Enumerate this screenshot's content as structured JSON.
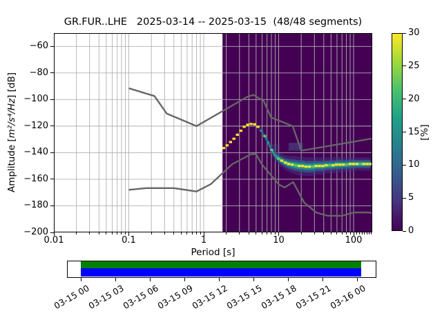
{
  "title": "GR.FUR..LHE   2025-03-14 -- 2025-03-15  (48/48 segments)",
  "axes": {
    "ylabel_prefix": "Amplitude [",
    "ylabel_math": "m²/s⁴/Hz",
    "ylabel_suffix": "] [dB]",
    "xlabel": "Period [s]",
    "x_major_ticks": [
      {
        "v": 0.01,
        "label": "0.01"
      },
      {
        "v": 0.1,
        "label": "0.1"
      },
      {
        "v": 1,
        "label": "1"
      },
      {
        "v": 10,
        "label": "10"
      },
      {
        "v": 100,
        "label": "100"
      }
    ],
    "x_minor_ticks": [
      0.02,
      0.03,
      0.04,
      0.05,
      0.06,
      0.07,
      0.08,
      0.09,
      0.2,
      0.3,
      0.4,
      0.5,
      0.6,
      0.7,
      0.8,
      0.9,
      2,
      3,
      4,
      5,
      6,
      7,
      8,
      9,
      20,
      30,
      40,
      50,
      60,
      70,
      80,
      90,
      110,
      120,
      130,
      140,
      150,
      160,
      170
    ],
    "y_ticks": [
      {
        "v": -60,
        "label": "−60"
      },
      {
        "v": -80,
        "label": "−80"
      },
      {
        "v": -100,
        "label": "−100"
      },
      {
        "v": -120,
        "label": "−120"
      },
      {
        "v": -140,
        "label": "−140"
      },
      {
        "v": -160,
        "label": "−160"
      },
      {
        "v": -180,
        "label": "−180"
      },
      {
        "v": -200,
        "label": "−200"
      }
    ]
  },
  "colorbar": {
    "label": "[%]",
    "min": 0,
    "max": 30,
    "ticks": [
      0,
      5,
      10,
      15,
      20,
      25,
      30
    ],
    "colormap": "viridis",
    "gradient_stops": [
      "#440154",
      "#46327e",
      "#365c8d",
      "#277f8e",
      "#1fa187",
      "#4ac16d",
      "#9fda3a",
      "#fde725"
    ]
  },
  "timeline": {
    "labels": [
      "03-15 00",
      "03-15 03",
      "03-15 06",
      "03-15 09",
      "03-15 12",
      "03-15 15",
      "03-15 18",
      "03-15 21",
      "03-16 00"
    ],
    "data_color": "#008000",
    "used_color": "#0000ff"
  },
  "chart_data": {
    "type": "heatmap",
    "description": "ObsPy PPSD probability density plot for station GR.FUR..LHE; 2D histogram of power spectral density (period vs amplitude dB) in percent, with Peterson NLNM/NHNM noise model curves",
    "x_axis": {
      "label": "Period [s]",
      "scale": "log",
      "range": [
        0.01,
        179
      ]
    },
    "y_axis": {
      "label": "Amplitude [m²/s⁴/Hz] [dB]",
      "scale": "linear",
      "range": [
        -200,
        -50
      ]
    },
    "color_axis": {
      "label": "[%]",
      "range": [
        0,
        30
      ],
      "colormap": "viridis"
    },
    "grid": {
      "color": "#b0b0b0",
      "x_periods": [
        0.02,
        0.03,
        0.04,
        0.05,
        0.06,
        0.07,
        0.08,
        0.09,
        0.1,
        0.2,
        0.3,
        0.4,
        0.5,
        0.6,
        0.7,
        0.8,
        0.9,
        1,
        2,
        3,
        4,
        5,
        6,
        7,
        8,
        9,
        10,
        20,
        30,
        40,
        50,
        60,
        70,
        80,
        90,
        100
      ],
      "y_db": [
        -60,
        -80,
        -100,
        -120,
        -140,
        -160,
        -180
      ]
    },
    "histogram": {
      "period_range": [
        1.78,
        179
      ],
      "background_color": "#440154",
      "marker_colors": {
        "y": "#fde725",
        "g": "#5ec962",
        "t": "#21918c"
      },
      "mode_bins": [
        [
          1.85,
          -136.5,
          1.2,
          "y"
        ],
        [
          2.05,
          -134.5,
          1.2,
          "y"
        ],
        [
          2.28,
          -132.0,
          1.2,
          "y"
        ],
        [
          2.53,
          -129.5,
          1.2,
          "y"
        ],
        [
          2.81,
          -126.5,
          1.2,
          "y"
        ],
        [
          3.13,
          -123.5,
          1.2,
          "y"
        ],
        [
          3.47,
          -120.5,
          1.2,
          "y"
        ],
        [
          3.86,
          -119.0,
          1.2,
          "y"
        ],
        [
          4.28,
          -118.4,
          1.2,
          "y"
        ],
        [
          4.76,
          -118.6,
          1.2,
          "y"
        ],
        [
          5.29,
          -120.5,
          1.5,
          "y"
        ],
        [
          5.87,
          -123.5,
          1.8,
          "t"
        ],
        [
          6.52,
          -127.5,
          2.2,
          "g"
        ],
        [
          7.25,
          -132.5,
          2.6,
          "t"
        ],
        [
          8.05,
          -138.0,
          3.0,
          "g"
        ],
        [
          8.94,
          -142.0,
          3.6,
          "t"
        ],
        [
          9.93,
          -144.5,
          4.5,
          "g"
        ],
        [
          11.0,
          -146.0,
          5.0,
          "y"
        ],
        [
          12.3,
          -147.5,
          5.5,
          "y"
        ],
        [
          13.6,
          -148.5,
          6.0,
          "y"
        ],
        [
          15.1,
          -149.0,
          6.5,
          "y"
        ],
        [
          16.8,
          -149.5,
          7.0,
          "g"
        ],
        [
          18.7,
          -150.0,
          7.0,
          "y"
        ],
        [
          20.7,
          -150.0,
          7.0,
          "y"
        ],
        [
          23.0,
          -150.5,
          7.0,
          "y"
        ],
        [
          25.6,
          -150.5,
          7.0,
          "y"
        ],
        [
          28.4,
          -150.5,
          7.0,
          "g"
        ],
        [
          31.5,
          -150.0,
          6.5,
          "y"
        ],
        [
          35.0,
          -150.0,
          6.5,
          "y"
        ],
        [
          38.9,
          -150.0,
          6.5,
          "y"
        ],
        [
          43.2,
          -149.5,
          6.0,
          "y"
        ],
        [
          48.0,
          -149.5,
          6.0,
          "g"
        ],
        [
          53.3,
          -149.5,
          6.0,
          "y"
        ],
        [
          59.2,
          -149.0,
          6.0,
          "y"
        ],
        [
          65.8,
          -149.0,
          6.0,
          "y"
        ],
        [
          73.1,
          -149.0,
          5.5,
          "y"
        ],
        [
          81.2,
          -149.0,
          5.5,
          "g"
        ],
        [
          90.2,
          -148.5,
          5.5,
          "y"
        ],
        [
          100.0,
          -148.5,
          5.5,
          "y"
        ],
        [
          111.0,
          -148.5,
          5.0,
          "y"
        ],
        [
          124.0,
          -148.5,
          5.0,
          "g"
        ],
        [
          137.0,
          -148.5,
          5.0,
          "y"
        ],
        [
          152.0,
          -148.5,
          5.0,
          "y"
        ],
        [
          169.0,
          -148.5,
          5.0,
          "y"
        ]
      ],
      "band_layers": [
        {
          "frac": 1.0,
          "color": "#443983",
          "opacity": 0.5,
          "from_bin": 10
        },
        {
          "frac": 0.6,
          "color": "#355f8d",
          "opacity": 0.8,
          "from_bin": 11
        },
        {
          "frac": 0.34,
          "color": "#21918c",
          "opacity": 0.95,
          "from_bin": 12
        },
        {
          "frac": 0.16,
          "color": "#27ad81",
          "opacity": 1.0,
          "from_bin": 14
        }
      ],
      "haze_patches": [
        {
          "period": [
            13.6,
            21.0
          ],
          "db": [
            -132.5,
            -138.5
          ],
          "color": "#44598f",
          "opacity": 0.5
        },
        {
          "period": [
            7.8,
            10.3
          ],
          "db": [
            -133.5,
            -140.0
          ],
          "color": "#44598f",
          "opacity": 0.3
        }
      ]
    },
    "noise_models": {
      "color": "#666666",
      "nlnm": [
        [
          0.1,
          -168.0
        ],
        [
          0.17,
          -166.7
        ],
        [
          0.4,
          -166.7
        ],
        [
          0.8,
          -169.2
        ],
        [
          1.24,
          -163.7
        ],
        [
          2.4,
          -148.6
        ],
        [
          4.3,
          -141.1
        ],
        [
          5.0,
          -141.1
        ],
        [
          6.0,
          -149.0
        ],
        [
          10.0,
          -163.8
        ],
        [
          12.0,
          -166.2
        ],
        [
          15.6,
          -162.1
        ],
        [
          21.9,
          -177.5
        ],
        [
          31.6,
          -185.0
        ],
        [
          45.0,
          -187.5
        ],
        [
          70.0,
          -187.5
        ],
        [
          101.0,
          -185.0
        ],
        [
          154.0,
          -185.0
        ],
        [
          178.0,
          -185.4
        ]
      ],
      "nhnm": [
        [
          0.1,
          -91.5
        ],
        [
          0.22,
          -97.4
        ],
        [
          0.32,
          -110.5
        ],
        [
          0.8,
          -120.0
        ],
        [
          3.8,
          -98.0
        ],
        [
          4.6,
          -96.5
        ],
        [
          6.3,
          -101.0
        ],
        [
          7.9,
          -113.5
        ],
        [
          15.4,
          -120.0
        ],
        [
          20.0,
          -138.5
        ],
        [
          178.0,
          -129.3
        ]
      ]
    }
  }
}
